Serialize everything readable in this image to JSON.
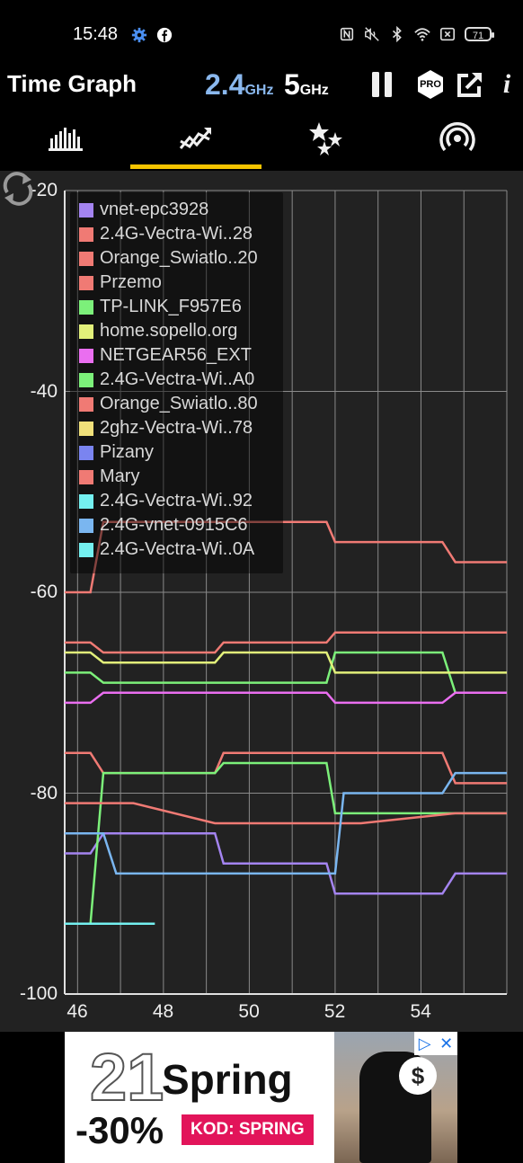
{
  "status_bar": {
    "time": "15:48",
    "battery": "71"
  },
  "app_bar": {
    "title": "Time Graph",
    "band_24_main": "2.4",
    "band_24_unit": "GHz",
    "band_5_main": "5",
    "band_5_unit": "GHz",
    "pro_badge": "PRO",
    "info": "i"
  },
  "tabs": [
    {
      "name": "channel-graph",
      "icon": "bar-chart-icon",
      "selected": false
    },
    {
      "name": "time-graph",
      "icon": "trend-line-icon",
      "selected": true
    },
    {
      "name": "channel-rating",
      "icon": "stars-icon",
      "selected": false
    },
    {
      "name": "access-points",
      "icon": "wifi-signal-icon",
      "selected": false
    }
  ],
  "colors": {
    "accent": "#f5c400",
    "band24": "#8ab8ee",
    "graph_bg": "#222222"
  },
  "chart_data": {
    "type": "line",
    "ylim": [
      -100,
      -20
    ],
    "xlim": [
      45.7,
      56.0
    ],
    "yticks": [
      "-20",
      "-40",
      "-60",
      "-80",
      "-100"
    ],
    "xticks": [
      "46",
      "48",
      "50",
      "52",
      "54"
    ],
    "grid": true,
    "legend_placement": "top-left",
    "series": [
      {
        "name": "vnet-epc3928",
        "color": "#a484f0",
        "x": [
          45.7,
          46.3,
          46.6,
          49.2,
          49.4,
          51.8,
          52.0,
          54.5,
          54.8,
          56.0
        ],
        "y": [
          -86,
          -86,
          -84,
          -84,
          -87,
          -87,
          -90,
          -90,
          -88,
          -88
        ]
      },
      {
        "name": "2.4G-Vectra-Wi..28",
        "color": "#f07a74",
        "x": [
          45.7,
          46.3,
          46.6,
          49.2,
          49.4,
          51.8,
          52.0,
          54.5,
          54.8,
          56.0
        ],
        "y": [
          -60,
          -60,
          -53,
          -53,
          -53,
          -53,
          -55,
          -55,
          -57,
          -57
        ]
      },
      {
        "name": "Orange_Swiatlo..20",
        "color": "#f07a74",
        "x": [
          45.7,
          46.3,
          46.6,
          49.2,
          49.4,
          51.8,
          52.0,
          54.5,
          54.8,
          56.0
        ],
        "y": [
          -65,
          -65,
          -66,
          -66,
          -65,
          -65,
          -64,
          -64,
          -64,
          -64
        ]
      },
      {
        "name": "Przemo",
        "color": "#f07a74",
        "x": [
          45.7,
          46.3,
          46.6,
          49.2,
          49.4,
          51.8,
          52.0,
          54.5,
          54.8,
          56.0
        ],
        "y": [
          -76,
          -76,
          -78,
          -78,
          -76,
          -76,
          -76,
          -76,
          -79,
          -79
        ]
      },
      {
        "name": "TP-LINK_F957E6",
        "color": "#7cf07a",
        "x": [
          45.7,
          46.3,
          46.6,
          49.2,
          49.4,
          51.8,
          52.0,
          54.5,
          54.8,
          56.0
        ],
        "y": [
          -68,
          -68,
          -69,
          -69,
          -69,
          -69,
          -66,
          -66,
          -70,
          -70
        ]
      },
      {
        "name": "home.sopello.org",
        "color": "#e2f07a",
        "x": [
          45.7,
          46.3,
          46.6,
          49.2,
          49.4,
          51.8,
          52.0,
          54.5,
          54.8,
          56.0
        ],
        "y": [
          -66,
          -66,
          -67,
          -67,
          -66,
          -66,
          -68,
          -68,
          -68,
          -68
        ]
      },
      {
        "name": "NETGEAR56_EXT",
        "color": "#ea6ef0",
        "x": [
          45.7,
          46.3,
          46.6,
          49.2,
          49.4,
          51.8,
          52.0,
          54.5,
          54.8,
          56.0
        ],
        "y": [
          -71,
          -71,
          -70,
          -70,
          -70,
          -70,
          -71,
          -71,
          -70,
          -70
        ]
      },
      {
        "name": "2.4G-Vectra-Wi..A0",
        "color": "#7cf07a",
        "x": [
          45.7,
          46.3,
          46.6,
          49.2,
          49.4,
          51.8,
          52.0,
          54.5,
          54.8,
          56.0
        ],
        "y": [
          -93,
          -93,
          -78,
          -78,
          -77,
          -77,
          -82,
          -82,
          -82,
          -82
        ]
      },
      {
        "name": "Orange_Swiatlo..80",
        "color": "#f07a74",
        "x": [
          45.7,
          46.3,
          46.6,
          47.3,
          49.2,
          49.4,
          51.8,
          52.0,
          52.6,
          54.8,
          56.0
        ],
        "y": [
          -81,
          -81,
          -81,
          -81,
          -83,
          -83,
          -83,
          -83,
          -83,
          -82,
          -82
        ]
      },
      {
        "name": "2ghz-Vectra-Wi..78",
        "color": "#f0e07a",
        "x": [],
        "y": []
      },
      {
        "name": "Pizany",
        "color": "#7a84f0",
        "x": [],
        "y": []
      },
      {
        "name": "Mary",
        "color": "#f07a74",
        "x": [],
        "y": []
      },
      {
        "name": "2.4G-Vectra-Wi..92",
        "color": "#74f0f0",
        "x": [
          45.7,
          47.8
        ],
        "y": [
          -93,
          -93
        ]
      },
      {
        "name": "2.4G-vnet-0915C6",
        "color": "#7ab6f0",
        "x": [
          45.7,
          46.3,
          46.6,
          46.9,
          49.2,
          49.4,
          51.8,
          52.0,
          52.2,
          54.5,
          54.8,
          56.0
        ],
        "y": [
          -84,
          -84,
          -84,
          -88,
          -88,
          -88,
          -88,
          -88,
          -80,
          -80,
          -78,
          -78
        ]
      },
      {
        "name": "2.4G-Vectra-Wi..0A",
        "color": "#74f0f0",
        "x": [],
        "y": []
      }
    ]
  },
  "ad": {
    "big_number": "21",
    "headline": "Spring",
    "discount": "-30%",
    "code": "KOD: SPRING",
    "badge": "$",
    "close": "✕",
    "adchoices": "▷"
  }
}
